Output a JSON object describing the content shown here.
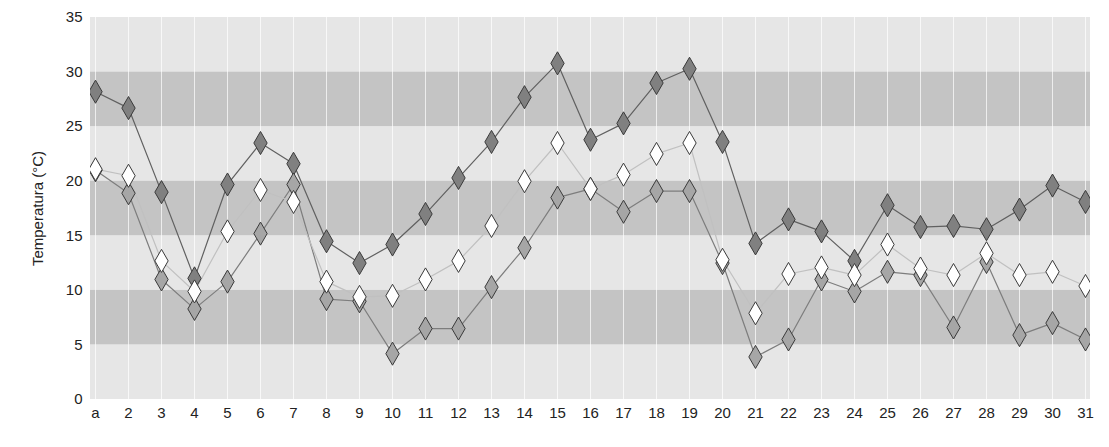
{
  "chart_data": {
    "type": "line",
    "y_label": "Temperatura (°C)",
    "categories": [
      "a",
      "2",
      "3",
      "4",
      "5",
      "6",
      "7",
      "8",
      "9",
      "10",
      "11",
      "12",
      "13",
      "14",
      "15",
      "16",
      "17",
      "18",
      "19",
      "20",
      "21",
      "22",
      "23",
      "24",
      "25",
      "26",
      "27",
      "28",
      "29",
      "30",
      "31"
    ],
    "series": [
      {
        "color": "#808080",
        "marker": "diamond",
        "values": [
          28.2,
          26.7,
          19.0,
          11.1,
          19.7,
          23.5,
          21.6,
          14.5,
          12.5,
          14.2,
          17.0,
          20.3,
          23.6,
          27.7,
          30.8,
          23.8,
          25.3,
          29.0,
          30.3,
          23.6,
          14.3,
          16.5,
          15.4,
          12.7,
          17.8,
          15.8,
          15.9,
          15.6,
          17.4,
          19.6,
          18.1
        ]
      },
      {
        "color": "#a6a6a6",
        "marker": "diamond",
        "values": [
          21.0,
          18.9,
          11.0,
          8.3,
          10.8,
          15.2,
          19.7,
          9.2,
          9.0,
          4.2,
          6.5,
          6.5,
          10.3,
          13.9,
          18.5,
          19.3,
          17.2,
          19.1,
          19.1,
          12.5,
          3.9,
          5.5,
          11.0,
          9.9,
          11.7,
          11.4,
          6.6,
          12.6,
          5.9,
          7.0,
          5.5
        ]
      },
      {
        "color": "#ffffff",
        "marker": "diamond",
        "values": [
          21.1,
          20.5,
          12.7,
          9.9,
          15.4,
          19.2,
          18.1,
          10.8,
          9.4,
          9.5,
          11.0,
          12.7,
          15.9,
          20.0,
          23.5,
          19.3,
          20.6,
          22.5,
          23.5,
          12.8,
          7.9,
          11.5,
          12.1,
          11.4,
          14.2,
          12.0,
          11.4,
          13.4,
          11.4,
          11.7,
          10.4
        ]
      }
    ],
    "ylim": [
      0,
      35
    ],
    "yticks": [
      0,
      5,
      10,
      15,
      20,
      25,
      30,
      35
    ],
    "grid": true
  }
}
